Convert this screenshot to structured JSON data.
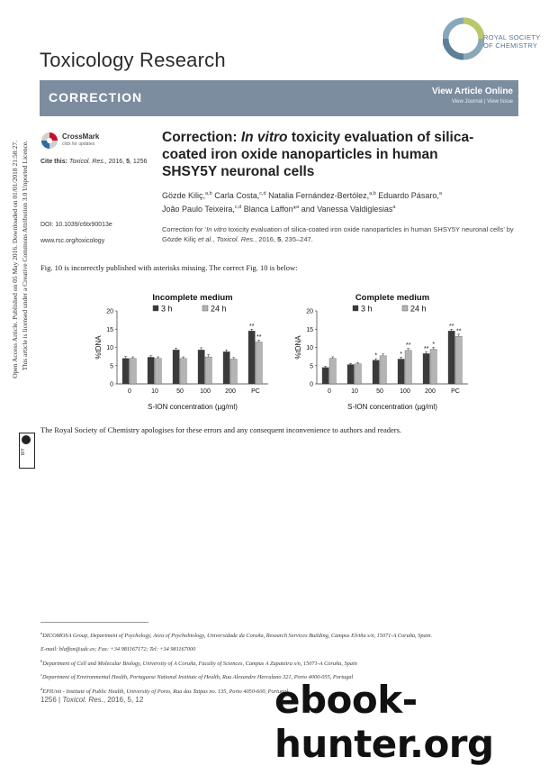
{
  "header": {
    "journal_title": "Toxicology Research",
    "publisher_line1": "ROYAL SOCIETY",
    "publisher_line2": "OF CHEMISTRY"
  },
  "banner": {
    "label": "CORRECTION",
    "view_online": "View Article Online",
    "view_links": "View Journal | View Issue"
  },
  "left_col": {
    "crossmark_title": "CrossMark",
    "crossmark_sub": "click for updates",
    "cite_label": "Cite this:",
    "cite_journal": "Toxicol. Res.",
    "cite_rest": ", 2016, ",
    "cite_vol": "5",
    "cite_pages": ", 1256",
    "doi": "DOI: 10.1039/c6tx90013e",
    "url": "www.rsc.org/toxicology"
  },
  "article": {
    "title_pre": "Correction: ",
    "title_italic": "In vitro",
    "title_post": " toxicity evaluation of silica-coated iron oxide nanoparticles in human SHSY5Y neuronal cells",
    "authors": [
      {
        "name": "Gözde Kiliç,",
        "sup": "a,b"
      },
      {
        "name": " Carla Costa,",
        "sup": "c,d"
      },
      {
        "name": " Natalia Fernández-Bertólez,",
        "sup": "a,b"
      },
      {
        "name": " Eduardo Pásaro,",
        "sup": "a"
      },
      {
        "name": " João Paulo Teixeira,",
        "sup": "c,d"
      },
      {
        "name": " Blanca Laffon*",
        "sup": "a"
      },
      {
        "name": " and Vanessa Valdiglesias",
        "sup": "a"
      }
    ],
    "correction_for_1": "Correction for ‘",
    "correction_for_italic": "In vitro",
    "correction_for_2": " toxicity evaluation of silica-coated iron oxide nanoparticles in human SHSY5Y neuronal cells’ by Gözde Kiliç ",
    "correction_for_etal": "et al.",
    "correction_for_3": ", ",
    "correction_for_journal": "Toxicol. Res.",
    "correction_for_4": ", 2016, ",
    "correction_for_vol": "5",
    "correction_for_5": ", 235–247."
  },
  "body": {
    "notice": "Fig. 10 is incorrectly published with asterisks missing. The correct Fig. 10 is below:",
    "apology": "The Royal Society of Chemistry apologises for these errors and any consequent inconvenience to authors and readers."
  },
  "side": {
    "line1": "Open Access Article. Published on 05 May 2016. Downloaded on 01/01/2018 21:58:27.",
    "line2": "This article is licensed under a Creative Commons Attribution 3.0 Unported Licence.",
    "badge_cc": "cc",
    "badge_by": "BY"
  },
  "footnotes": [
    {
      "sup": "a",
      "text": "DICOMOSA Group, Department of Psychology, Area of Psychobiology, Universidade da Coruña, Research Services Building, Campus Elviña s/n, 15071-A Coruña, Spain."
    },
    {
      "sup": "",
      "text": "E-mail: blaffon@udc.es; Fax: +34 981167172; Tel: +34 981167000"
    },
    {
      "sup": "b",
      "text": "Department of Cell and Molecular Biology, University of A Coruña, Faculty of Sciences, Campus A Zapateira s/n, 15071-A Coruña, Spain"
    },
    {
      "sup": "c",
      "text": "Department of Environmental Health, Portuguese National Institute of Health, Rua Alexandre Herculano 321, Porto 4000-055, Portugal"
    },
    {
      "sup": "d",
      "text": "EPIUnit - Institute of Public Health, University of Porto, Rua das Taipas no. 135, Porto 4050-600, Portugal"
    }
  ],
  "footer": {
    "page": "1256",
    "sep": " | ",
    "journal": "Toxicol. Res.",
    "rest": ", 2016, 5, 12"
  },
  "watermark": "ebook-hunter.org",
  "colors": {
    "bar_3h": "#3a3a3a",
    "bar_24h": "#b4b4b4",
    "banner": "#7d8da0"
  },
  "chart_data": [
    {
      "type": "bar",
      "title": "Incomplete medium",
      "xlabel": "S-ION concentration (µg/ml)",
      "ylabel": "%tDNA",
      "categories": [
        "0",
        "10",
        "50",
        "100",
        "200",
        "PC"
      ],
      "ylim": [
        0,
        20
      ],
      "yticks": [
        "0",
        "5",
        "10",
        "15",
        "20"
      ],
      "series": [
        {
          "name": "3 h",
          "values": [
            7.0,
            7.3,
            9.3,
            9.3,
            8.8,
            14.5
          ],
          "errors": [
            0.5,
            0.4,
            0.5,
            0.6,
            0.5,
            0.5
          ]
        },
        {
          "name": "24 h",
          "values": [
            7.0,
            7.0,
            7.0,
            7.4,
            6.8,
            11.5
          ],
          "errors": [
            0.4,
            0.4,
            0.4,
            0.6,
            0.4,
            0.5
          ]
        }
      ],
      "annotations": [
        {
          "series": "3 h",
          "category": "PC",
          "text": "**"
        },
        {
          "series": "24 h",
          "category": "PC",
          "text": "**"
        }
      ],
      "legend": "top"
    },
    {
      "type": "bar",
      "title": "Complete medium",
      "xlabel": "S-ION concentration (µg/ml)",
      "ylabel": "%tDNA",
      "categories": [
        "0",
        "10",
        "50",
        "100",
        "200",
        "PC"
      ],
      "ylim": [
        0,
        20
      ],
      "yticks": [
        "0",
        "5",
        "10",
        "15",
        "20"
      ],
      "series": [
        {
          "name": "3 h",
          "values": [
            4.5,
            5.3,
            6.5,
            6.8,
            8.3,
            14.5
          ],
          "errors": [
            0.3,
            0.3,
            0.4,
            0.5,
            0.5,
            0.5
          ]
        },
        {
          "name": "24 h",
          "values": [
            7.0,
            5.5,
            7.7,
            9.2,
            9.5,
            13.0
          ],
          "errors": [
            0.4,
            0.3,
            0.5,
            0.5,
            0.5,
            0.6
          ]
        }
      ],
      "annotations": [
        {
          "series": "3 h",
          "category": "50",
          "text": "*"
        },
        {
          "series": "3 h",
          "category": "100",
          "text": "*"
        },
        {
          "series": "24 h",
          "category": "100",
          "text": "**"
        },
        {
          "series": "3 h",
          "category": "200",
          "text": "**"
        },
        {
          "series": "24 h",
          "category": "200",
          "text": "*"
        },
        {
          "series": "3 h",
          "category": "PC",
          "text": "**"
        },
        {
          "series": "24 h",
          "category": "PC",
          "text": "**"
        }
      ],
      "legend": "top"
    }
  ]
}
